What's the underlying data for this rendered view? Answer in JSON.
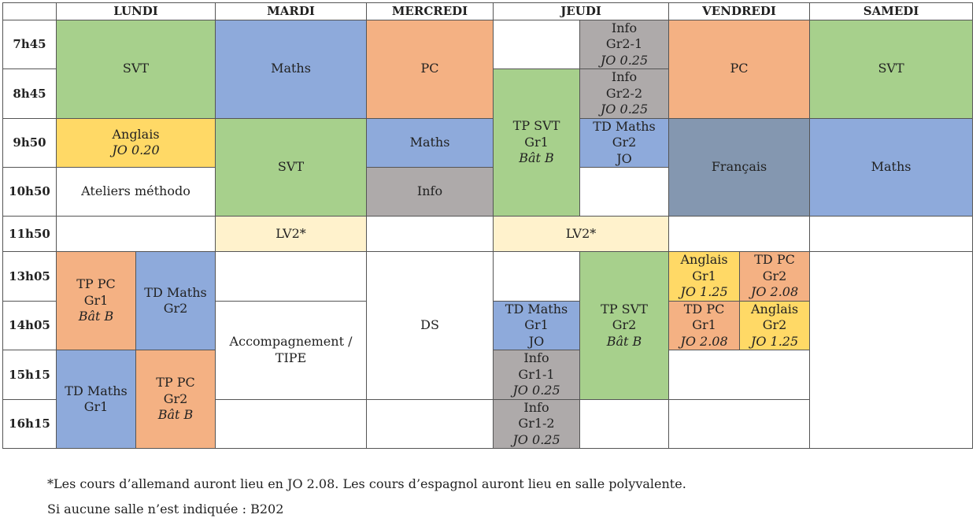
{
  "days": [
    "LUNDI",
    "MARDI",
    "MERCREDI",
    "JEUDI",
    "VENDREDI",
    "SAMEDI"
  ],
  "times": [
    "7h45",
    "8h45",
    "9h50",
    "10h50",
    "11h50",
    "13h05",
    "14h05",
    "15h15",
    "16h15"
  ],
  "colors": {
    "green": "#a7d08c",
    "blue": "#8eaadb",
    "orange": "#f4b183",
    "yellow": "#ffd966",
    "grey": "#aeaaaa",
    "slate": "#8497b0",
    "cream": "#fff2cc"
  },
  "cells": {
    "lun_svt": {
      "subject": "SVT"
    },
    "mar_maths": {
      "subject": "Maths"
    },
    "mer_pc": {
      "subject": "PC"
    },
    "jeu_info1": {
      "l1": "Info",
      "l2": "Gr2-1",
      "room": "JO 0.25"
    },
    "ven_pc": {
      "subject": "PC"
    },
    "sam_svt": {
      "subject": "SVT"
    },
    "jeu_tpsvt": {
      "l1": "TP SVT",
      "l2": "Gr1",
      "room": "Bât B"
    },
    "jeu_info2": {
      "l1": "Info",
      "l2": "Gr2-2",
      "room": "JO 0.25"
    },
    "lun_anglais": {
      "l1": "Anglais",
      "room": "JO 0.20"
    },
    "mar_svt": {
      "subject": "SVT"
    },
    "mer_maths": {
      "subject": "Maths"
    },
    "jeu_tdmaths": {
      "l1": "TD Maths",
      "l2": "Gr2",
      "l3": "JO"
    },
    "ven_francais": {
      "subject": "Français"
    },
    "sam_maths": {
      "subject": "Maths"
    },
    "lun_ateliers": {
      "subject": "Ateliers méthodo"
    },
    "mer_info": {
      "subject": "Info"
    },
    "mar_lv2": {
      "subject": "LV2*"
    },
    "jeu_lv2": {
      "subject": "LV2*"
    },
    "lun_tppc1": {
      "l1": "TP PC",
      "l2": "Gr1",
      "room": "Bât B"
    },
    "lun_tdmaths2": {
      "l1": "TD Maths",
      "l2": "Gr2"
    },
    "mer_ds": {
      "subject": "DS"
    },
    "jeu_tpsvt2": {
      "l1": "TP SVT",
      "l2": "Gr2",
      "room": "Bât B"
    },
    "ven_anglais1": {
      "l1": "Anglais",
      "l2": "Gr1",
      "room": "JO 1.25"
    },
    "ven_tdpc2": {
      "l1": "TD PC",
      "l2": "Gr2",
      "room": "JO 2.08"
    },
    "mar_accomp": {
      "l1": "Accompagnement /",
      "l2": "TIPE"
    },
    "jeu_tdmaths1": {
      "l1": "TD Maths",
      "l2": "Gr1",
      "l3": "JO"
    },
    "ven_tdpc1": {
      "l1": "TD PC",
      "l2": "Gr1",
      "room": "JO 2.08"
    },
    "ven_anglais2": {
      "l1": "Anglais",
      "l2": "Gr2",
      "room": "JO 1.25"
    },
    "lun_tdmaths1": {
      "l1": "TD Maths",
      "l2": "Gr1"
    },
    "lun_tppc2": {
      "l1": "TP PC",
      "l2": "Gr2",
      "room": "Bât B"
    },
    "jeu_info3": {
      "l1": "Info",
      "l2": "Gr1-1",
      "room": "JO 0.25"
    },
    "jeu_info4": {
      "l1": "Info",
      "l2": "Gr1-2",
      "room": "JO 0.25"
    }
  },
  "footnotes": [
    "*Les cours d’allemand auront lieu en JO 2.08. Les cours d’espagnol auront lieu en salle polyvalente.",
    "Si aucune salle n’est indiquée : B202"
  ]
}
